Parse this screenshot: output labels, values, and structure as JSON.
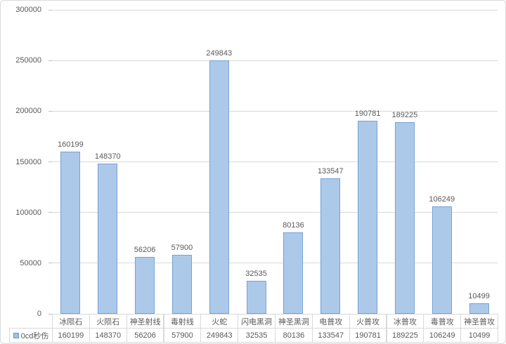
{
  "chart_data": {
    "type": "bar",
    "title": "",
    "categories": [
      "冰陨石",
      "火陨石",
      "神圣射线",
      "毒射线",
      "火蛇",
      "闪电黑洞",
      "神圣黑洞",
      "电普攻",
      "火普攻",
      "冰普攻",
      "毒普攻",
      "神圣普攻"
    ],
    "series": [
      {
        "name": "0cd秒伤",
        "values": [
          160199,
          148370,
          56206,
          57900,
          249843,
          32535,
          80136,
          133547,
          190781,
          189225,
          106249,
          10499
        ]
      }
    ],
    "xlabel": "",
    "ylabel": "",
    "ylim": [
      0,
      300000
    ],
    "ytick_step": 50000,
    "ytick_labels": [
      "0",
      "50000",
      "100000",
      "150000",
      "200000",
      "250000",
      "300000"
    ],
    "grid": true,
    "data_labels": true,
    "legend_position": "bottom-left-of-data-table",
    "data_table_shown": true,
    "colors": {
      "bar_fill": "#adc9ea",
      "bar_border": "#74a2d5",
      "gridline": "#d9d9d9",
      "axis_text": "#595959",
      "table_border": "#d9d9d9",
      "legend_swatch_fill": "#9dc3e6",
      "legend_swatch_border": "#5b9bd5",
      "chart_border": "#d9d9d9",
      "background": "#ffffff"
    }
  }
}
